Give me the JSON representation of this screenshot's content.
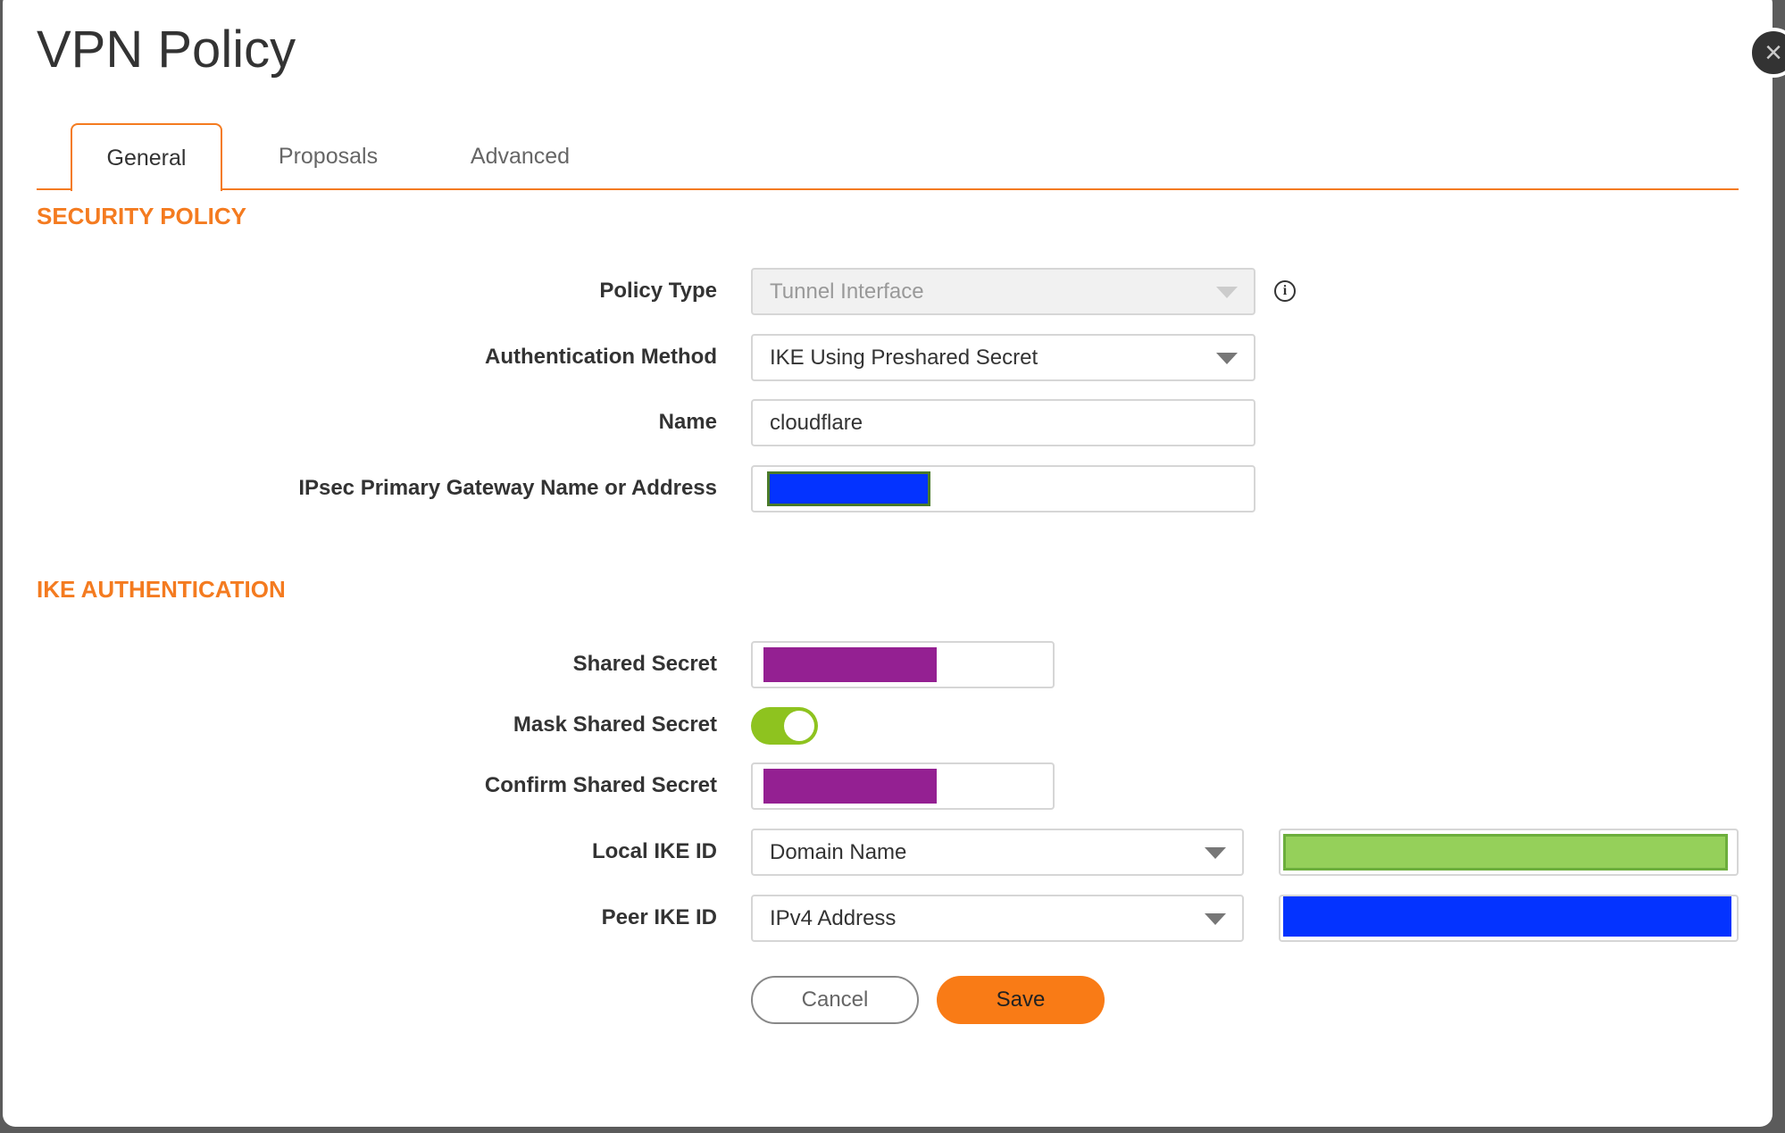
{
  "dialog": {
    "title": "VPN Policy"
  },
  "tabs": [
    {
      "label": "General",
      "active": true
    },
    {
      "label": "Proposals"
    },
    {
      "label": "Advanced"
    }
  ],
  "security_policy": {
    "heading": "SECURITY POLICY",
    "policy_type": {
      "label": "Policy Type",
      "value": "Tunnel Interface",
      "disabled": true
    },
    "auth_method": {
      "label": "Authentication Method",
      "value": "IKE Using Preshared Secret"
    },
    "name": {
      "label": "Name",
      "value": "cloudflare"
    },
    "gateway": {
      "label": "IPsec Primary Gateway Name or Address",
      "redaction_color": "#0433ff"
    }
  },
  "ike_auth": {
    "heading": "IKE AUTHENTICATION",
    "shared_secret": {
      "label": "Shared Secret",
      "redaction_color": "#942092"
    },
    "mask_shared_secret": {
      "label": "Mask Shared Secret",
      "on": true
    },
    "confirm_shared_secret": {
      "label": "Confirm Shared Secret",
      "redaction_color": "#942092"
    },
    "local_ike_id": {
      "label": "Local IKE ID",
      "type": "Domain Name",
      "redaction_color": "#95d05a"
    },
    "peer_ike_id": {
      "label": "Peer IKE ID",
      "type": "IPv4 Address",
      "redaction_color": "#0433ff"
    }
  },
  "buttons": {
    "cancel": "Cancel",
    "save": "Save"
  },
  "colors": {
    "accent": "#f47b20",
    "toggle_on": "#8ec31f"
  }
}
